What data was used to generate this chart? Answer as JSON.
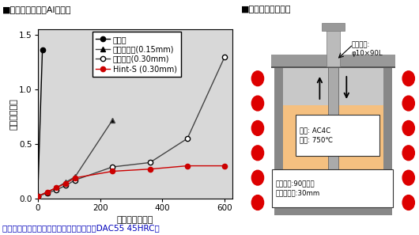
{
  "title_left": "■各種窒化法の耐Al溶損性",
  "title_right": "■耐溶損性評価方法",
  "xlabel": "試験時間（分）",
  "ylabel": "溶損率（％）",
  "footer": "各種表面処理の耐溶損性評価結果（母材：DAC55 45HRC）",
  "xlim": [
    0,
    625
  ],
  "ylim": [
    0,
    1.55
  ],
  "yticks": [
    0.0,
    0.5,
    1.0,
    1.5
  ],
  "xticks": [
    0,
    200,
    400,
    600
  ],
  "series": [
    {
      "label": "無処理",
      "color": "#000000",
      "marker": "o",
      "markerfacecolor": "#000000",
      "x": [
        0,
        15
      ],
      "y": [
        0.02,
        1.36
      ]
    },
    {
      "label": "ガス軟窒化(0.15mm)",
      "color": "#444444",
      "marker": "^",
      "markerfacecolor": "#000000",
      "x": [
        0,
        30,
        60,
        90,
        120,
        240
      ],
      "y": [
        0.02,
        0.06,
        0.1,
        0.15,
        0.2,
        0.72
      ]
    },
    {
      "label": "ガス窒化(0.30mm)",
      "color": "#444444",
      "marker": "o",
      "markerfacecolor": "#ffffff",
      "x": [
        0,
        30,
        60,
        90,
        120,
        240,
        360,
        480,
        600
      ],
      "y": [
        0.02,
        0.05,
        0.08,
        0.12,
        0.17,
        0.29,
        0.33,
        0.55,
        1.3
      ]
    },
    {
      "label": "Hint-S (0.30mm)",
      "color": "#cc0000",
      "marker": "o",
      "markerfacecolor": "#cc0000",
      "x": [
        0,
        30,
        60,
        90,
        120,
        240,
        360,
        480,
        600
      ],
      "y": [
        0.02,
        0.06,
        0.1,
        0.14,
        0.19,
        0.25,
        0.27,
        0.3,
        0.3
      ]
    }
  ],
  "bg_color": "#d8d8d8",
  "legend_fontsize": 7,
  "tick_fontsize": 7.5,
  "label_fontsize": 8,
  "title_fontsize": 8,
  "footer_color": "#0000bb",
  "footer_fontsize": 7.5,
  "diagram": {
    "red_dot_color": "#dd0000",
    "container_outer_color": "#888888",
    "container_fill": "#f5c080",
    "container_inner_top": "#c8c8c8",
    "rod_color": "#aaaaaa",
    "top_plate_color": "#999999",
    "sample_text": "サンプル:\nφ10×90L",
    "melt_text": "溶湯: AC4C\n温度: 750℃",
    "motion_text": "上下運動:90回／分\nストローク:30mm"
  }
}
